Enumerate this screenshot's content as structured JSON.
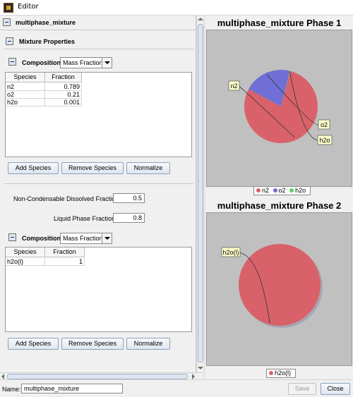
{
  "window": {
    "title": "Editor"
  },
  "editor": {
    "header": "multiphase_mixture",
    "mixture_properties_label": "Mixture Properties",
    "composition1": {
      "label": "Composition",
      "mode": "Mass Fraction",
      "columns": [
        "Species",
        "Fraction"
      ],
      "rows": [
        {
          "species": "n2",
          "fraction": "0.789"
        },
        {
          "species": "o2",
          "fraction": "0.21"
        },
        {
          "species": "h2o",
          "fraction": "0.001"
        }
      ],
      "buttons": {
        "add": "Add Species",
        "remove": "Remove Species",
        "normalize": "Normalize"
      }
    },
    "noncondensable": {
      "label": "Non-Condensable Dissolved Fraction",
      "value": "0.5"
    },
    "liquid_phase": {
      "label": "Liquid Phase Fraction",
      "value": "0.8"
    },
    "composition2": {
      "label": "Composition",
      "mode": "Mass Fraction",
      "columns": [
        "Species",
        "Fraction"
      ],
      "rows": [
        {
          "species": "h2o(l)",
          "fraction": "1"
        }
      ],
      "buttons": {
        "add": "Add Species",
        "remove": "Remove Species",
        "normalize": "Normalize"
      }
    }
  },
  "charts": {
    "phase1": {
      "title": "multiphase_mixture Phase 1",
      "labels": {
        "n2": "n2",
        "o2": "o2",
        "h2o": "h2o"
      },
      "legend": [
        {
          "name": "n2",
          "color": "#d9626a"
        },
        {
          "name": "o2",
          "color": "#6f6fd6"
        },
        {
          "name": "h2o",
          "color": "#5fd35f"
        }
      ]
    },
    "phase2": {
      "title": "multiphase_mixture Phase 2",
      "labels": {
        "h2ol": "h2o(l)"
      },
      "legend": [
        {
          "name": "h2o(l)",
          "color": "#d9626a"
        }
      ]
    }
  },
  "chart_data": [
    {
      "type": "pie",
      "title": "multiphase_mixture Phase 1",
      "categories": [
        "n2",
        "o2",
        "h2o"
      ],
      "values": [
        0.789,
        0.21,
        0.001
      ],
      "colors": [
        "#d9626a",
        "#6f6fd6",
        "#5fd35f"
      ],
      "legend": "bottom"
    },
    {
      "type": "pie",
      "title": "multiphase_mixture Phase 2",
      "categories": [
        "h2o(l)"
      ],
      "values": [
        1
      ],
      "colors": [
        "#d9626a"
      ],
      "legend": "bottom"
    }
  ],
  "footer": {
    "name_label": "Name:",
    "name_value": "multiphase_mixture",
    "save": "Save",
    "close": "Close"
  }
}
